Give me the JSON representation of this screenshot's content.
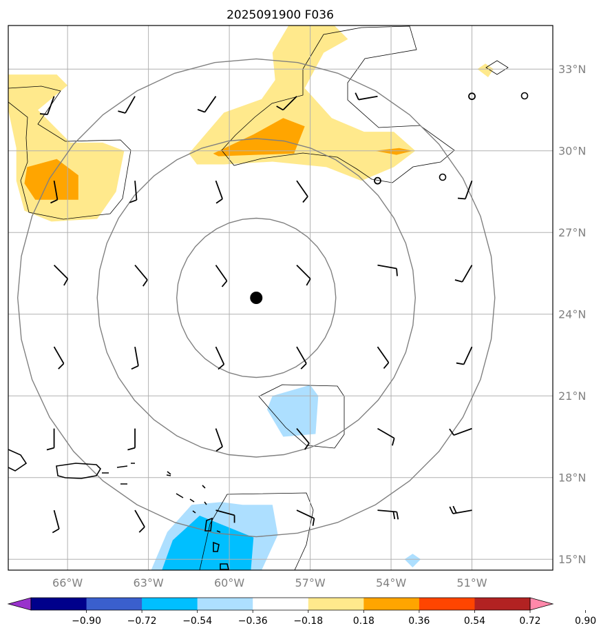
{
  "chart_data": {
    "type": "contour-map",
    "title": "2025091900 F036",
    "xlim": [
      -68.2,
      -48.0
    ],
    "ylim": [
      14.6,
      34.6
    ],
    "lon_ticks": [
      -66,
      -63,
      -60,
      -57,
      -54,
      -51
    ],
    "lon_tick_labels": [
      "66°W",
      "63°W",
      "60°W",
      "57°W",
      "54°W",
      "51°W"
    ],
    "lat_ticks": [
      15,
      18,
      21,
      24,
      27,
      30,
      33
    ],
    "lat_tick_labels": [
      "15°N",
      "18°N",
      "21°N",
      "24°N",
      "27°N",
      "30°N",
      "33°N"
    ],
    "gridlines": true,
    "center": {
      "lon": -59.0,
      "lat": 24.6
    },
    "range_ring_radii_deg": [
      2.95,
      5.9,
      8.85
    ],
    "colorbar": {
      "levels": [
        -0.9,
        -0.72,
        -0.54,
        -0.36,
        -0.18,
        0.18,
        0.36,
        0.54,
        0.72,
        0.9
      ],
      "level_labels": [
        "−0.90",
        "−0.72",
        "−0.54",
        "−0.36",
        "−0.18",
        "0.18",
        "0.36",
        "0.54",
        "0.72",
        "0.90"
      ],
      "colors": [
        "#9932CC",
        "#00008B",
        "#3A5FCD",
        "#00BFFF",
        "#ADDFFF",
        "#FFFFFF",
        "#FFE98C",
        "#FFA500",
        "#FF4500",
        "#B22222",
        "#FF88AA"
      ],
      "extend": "both"
    },
    "fields": [
      {
        "name": "west-positive-region",
        "level": 0.18,
        "points": [
          [
            -68.2,
            32.8
          ],
          [
            -66.4,
            32.8
          ],
          [
            -66.0,
            32.4
          ],
          [
            -67.1,
            31.5
          ],
          [
            -65.9,
            30.3
          ],
          [
            -64.7,
            30.3
          ],
          [
            -63.9,
            30.0
          ],
          [
            -64.2,
            28.5
          ],
          [
            -64.9,
            27.5
          ],
          [
            -66.6,
            27.4
          ],
          [
            -67.6,
            27.8
          ],
          [
            -67.9,
            28.9
          ],
          [
            -67.9,
            30.1
          ],
          [
            -68.2,
            31.5
          ]
        ]
      },
      {
        "name": "west-orange-core",
        "level": 0.36,
        "points": [
          [
            -67.5,
            29.4
          ],
          [
            -66.4,
            29.7
          ],
          [
            -65.6,
            29.1
          ],
          [
            -65.6,
            28.2
          ],
          [
            -67.2,
            28.2
          ],
          [
            -67.6,
            28.8
          ]
        ]
      },
      {
        "name": "north-positive-region",
        "level": 0.18,
        "points": [
          [
            -61.5,
            29.9
          ],
          [
            -60.2,
            31.4
          ],
          [
            -58.8,
            31.9
          ],
          [
            -58.3,
            32.6
          ],
          [
            -58.4,
            33.6
          ],
          [
            -57.8,
            34.6
          ],
          [
            -56.1,
            34.6
          ],
          [
            -55.6,
            34.1
          ],
          [
            -56.5,
            33.6
          ],
          [
            -57.2,
            32.3
          ],
          [
            -56.2,
            31.2
          ],
          [
            -55.0,
            30.7
          ],
          [
            -53.9,
            30.7
          ],
          [
            -53.1,
            30.0
          ],
          [
            -53.9,
            29.4
          ],
          [
            -55.1,
            28.9
          ],
          [
            -56.4,
            29.4
          ],
          [
            -58.4,
            29.6
          ],
          [
            -60.2,
            29.5
          ],
          [
            -61.2,
            29.5
          ]
        ]
      },
      {
        "name": "north-orange-core",
        "level": 0.36,
        "points": [
          [
            -60.6,
            29.9
          ],
          [
            -59.1,
            30.6
          ],
          [
            -58.0,
            31.2
          ],
          [
            -57.2,
            30.9
          ],
          [
            -57.6,
            29.9
          ],
          [
            -60.4,
            29.8
          ]
        ]
      },
      {
        "name": "east-orange-streak",
        "level": 0.36,
        "points": [
          [
            -54.6,
            30.0
          ],
          [
            -53.7,
            30.1
          ],
          [
            -53.2,
            30.0
          ],
          [
            -53.8,
            29.85
          ]
        ]
      },
      {
        "name": "northeast-blob",
        "level": 0.18,
        "points": [
          [
            -50.5,
            33.2
          ],
          [
            -50.2,
            33.0
          ],
          [
            -50.4,
            32.7
          ],
          [
            -50.8,
            33.0
          ]
        ]
      },
      {
        "name": "central-negative-region",
        "level": -0.18,
        "points": [
          [
            -58.4,
            21.0
          ],
          [
            -57.0,
            21.4
          ],
          [
            -56.7,
            21.0
          ],
          [
            -56.8,
            19.6
          ],
          [
            -58.0,
            19.5
          ],
          [
            -58.6,
            20.5
          ]
        ]
      },
      {
        "name": "south-negative-region",
        "level": -0.18,
        "points": [
          [
            -62.9,
            14.6
          ],
          [
            -62.3,
            16.0
          ],
          [
            -61.4,
            17.0
          ],
          [
            -60.3,
            17.1
          ],
          [
            -59.5,
            17.0
          ],
          [
            -58.4,
            17.0
          ],
          [
            -58.2,
            15.9
          ],
          [
            -58.8,
            14.6
          ]
        ]
      },
      {
        "name": "south-negative-core",
        "level": -0.36,
        "points": [
          [
            -62.5,
            14.6
          ],
          [
            -62.1,
            15.7
          ],
          [
            -61.1,
            16.6
          ],
          [
            -60.1,
            16.2
          ],
          [
            -59.1,
            15.8
          ],
          [
            -59.2,
            14.6
          ]
        ]
      },
      {
        "name": "southeast-small-blob",
        "level": -0.18,
        "points": [
          [
            -53.2,
            15.2
          ],
          [
            -52.9,
            15.0
          ],
          [
            -53.2,
            14.7
          ],
          [
            -53.5,
            15.0
          ]
        ]
      }
    ],
    "wind_barbs": [
      {
        "lon": -66.5,
        "lat": 32.0,
        "dir": 200,
        "barbs": 1
      },
      {
        "lon": -63.5,
        "lat": 32.0,
        "dir": 210,
        "barbs": 1
      },
      {
        "lon": -60.5,
        "lat": 32.0,
        "dir": 215,
        "barbs": 1
      },
      {
        "lon": -57.5,
        "lat": 32.0,
        "dir": 225,
        "barbs": 1
      },
      {
        "lon": -54.5,
        "lat": 32.0,
        "dir": 260,
        "barbs": 1
      },
      {
        "lon": -66.5,
        "lat": 28.9,
        "dir": 170,
        "barbs": 1
      },
      {
        "lon": -63.5,
        "lat": 28.9,
        "dir": 175,
        "barbs": 1
      },
      {
        "lon": -60.5,
        "lat": 28.9,
        "dir": 160,
        "barbs": 1
      },
      {
        "lon": -57.5,
        "lat": 28.9,
        "dir": 145,
        "barbs": 1
      },
      {
        "lon": -54.5,
        "lat": 28.9,
        "dir": 0,
        "calm": true
      },
      {
        "lon": -51.0,
        "lat": 28.9,
        "dir": 200,
        "barbs": 1
      },
      {
        "lon": -66.5,
        "lat": 25.8,
        "dir": 135,
        "barbs": 1
      },
      {
        "lon": -63.5,
        "lat": 25.8,
        "dir": 140,
        "barbs": 1
      },
      {
        "lon": -60.5,
        "lat": 25.8,
        "dir": 145,
        "barbs": 1
      },
      {
        "lon": -57.5,
        "lat": 25.8,
        "dir": 135,
        "barbs": 1
      },
      {
        "lon": -54.5,
        "lat": 25.8,
        "dir": 100,
        "barbs": 1
      },
      {
        "lon": -51.0,
        "lat": 25.8,
        "dir": 210,
        "barbs": 1
      },
      {
        "lon": -66.5,
        "lat": 22.8,
        "dir": 150,
        "barbs": 1
      },
      {
        "lon": -63.5,
        "lat": 22.8,
        "dir": 170,
        "barbs": 1
      },
      {
        "lon": -60.5,
        "lat": 22.8,
        "dir": 155,
        "barbs": 1
      },
      {
        "lon": -57.5,
        "lat": 22.8,
        "dir": 150,
        "barbs": 1
      },
      {
        "lon": -54.5,
        "lat": 22.8,
        "dir": 145,
        "barbs": 1
      },
      {
        "lon": -51.0,
        "lat": 22.8,
        "dir": 205,
        "barbs": 1
      },
      {
        "lon": -66.5,
        "lat": 19.8,
        "dir": 180,
        "barbs": 1
      },
      {
        "lon": -63.5,
        "lat": 19.8,
        "dir": 180,
        "barbs": 1
      },
      {
        "lon": -60.5,
        "lat": 19.8,
        "dir": 160,
        "barbs": 1
      },
      {
        "lon": -57.5,
        "lat": 19.8,
        "dir": 140,
        "barbs": 1
      },
      {
        "lon": -54.5,
        "lat": 19.8,
        "dir": 120,
        "barbs": 1
      },
      {
        "lon": -51.0,
        "lat": 19.8,
        "dir": 250,
        "barbs": 1
      },
      {
        "lon": -66.5,
        "lat": 16.8,
        "dir": 165,
        "barbs": 1
      },
      {
        "lon": -63.5,
        "lat": 16.8,
        "dir": 150,
        "barbs": 1
      },
      {
        "lon": -60.5,
        "lat": 16.8,
        "dir": 105,
        "barbs": 1
      },
      {
        "lon": -57.5,
        "lat": 16.8,
        "dir": 115,
        "barbs": 1
      },
      {
        "lon": -54.5,
        "lat": 16.8,
        "dir": 95,
        "barbs": 2
      },
      {
        "lon": -51.0,
        "lat": 16.8,
        "dir": 260,
        "barbs": 2
      },
      {
        "lon": -51.0,
        "lat": 32.0,
        "dir": 0,
        "calm": true
      }
    ]
  }
}
